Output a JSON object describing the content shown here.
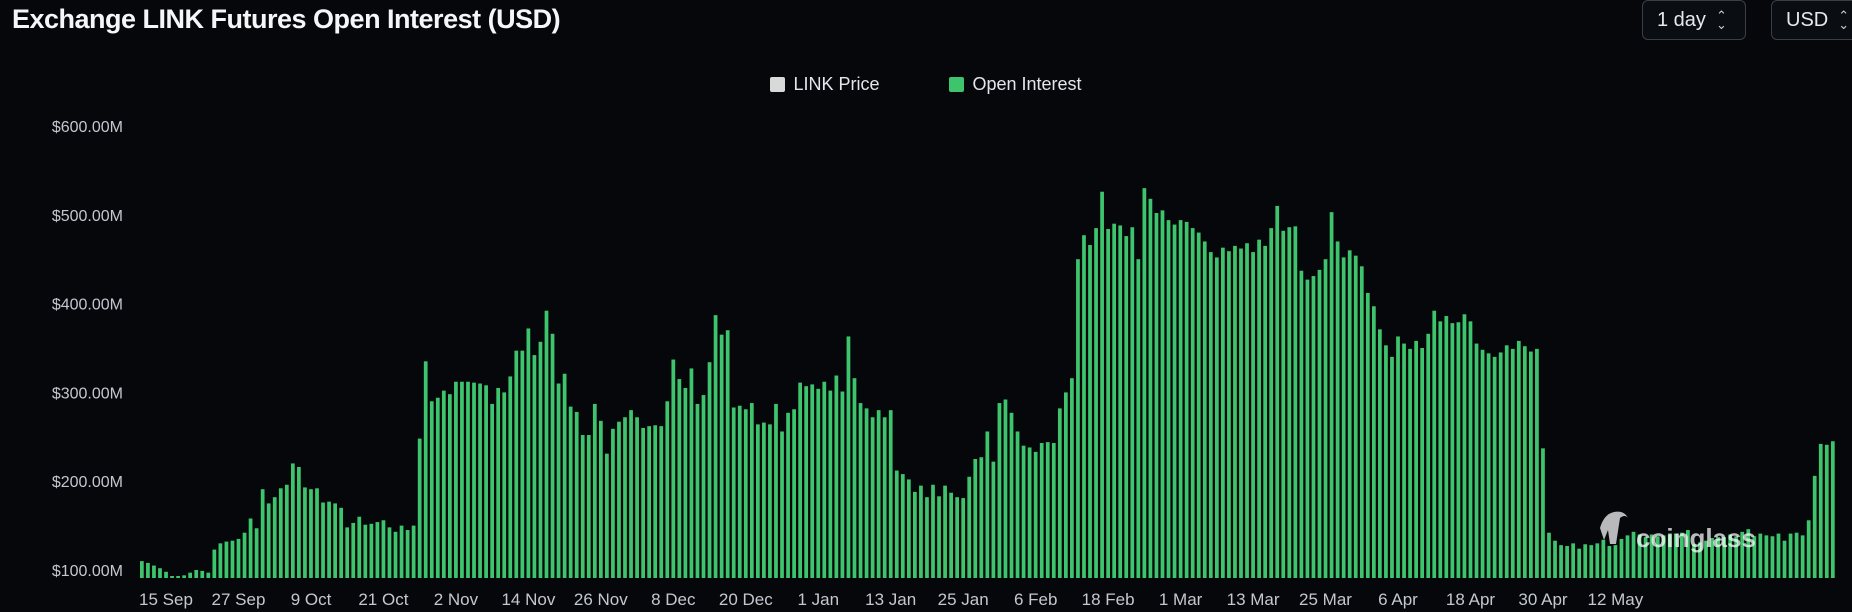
{
  "header": {
    "title": "Exchange LINK Futures Open Interest (USD)"
  },
  "controls": {
    "interval": "1 day",
    "currency": "USD"
  },
  "watermark": "coinglass",
  "colors": {
    "open_interest": "#3ec46d",
    "link_price": "#d9d9d9",
    "background": "#05070b"
  },
  "chart_data": {
    "type": "bar",
    "title": "Exchange LINK Futures Open Interest (USD)",
    "legend": [
      "LINK Price",
      "Open Interest"
    ],
    "legend_position": "top-center",
    "series": [
      {
        "name": "Open Interest",
        "color": "#3ec46d",
        "values": [
          110,
          108,
          105,
          102,
          98,
          93,
          92,
          94,
          97,
          100,
          99,
          97,
          123,
          130,
          132,
          133,
          135,
          142,
          158,
          147,
          191,
          175,
          182,
          192,
          196,
          220,
          216,
          193,
          191,
          192,
          176,
          177,
          175,
          170,
          148,
          153,
          160,
          151,
          152,
          154,
          156,
          148,
          143,
          150,
          145,
          150,
          248,
          335,
          290,
          294,
          302,
          298,
          312,
          312,
          312,
          311,
          310,
          308,
          287,
          305,
          300,
          318,
          347,
          347,
          372,
          342,
          357,
          392,
          366,
          310,
          321,
          284,
          278,
          252,
          252,
          287,
          268,
          231,
          259,
          267,
          272,
          280,
          272,
          260,
          262,
          263,
          262,
          290,
          337,
          315,
          305,
          327,
          287,
          297,
          334,
          387,
          365,
          370,
          283,
          285,
          281,
          288,
          264,
          266,
          264,
          287,
          256,
          277,
          281,
          311,
          307,
          309,
          304,
          312,
          302,
          319,
          301,
          363,
          316,
          288,
          282,
          272,
          280,
          272,
          280,
          212,
          208,
          202,
          188,
          195,
          182,
          196,
          183,
          195,
          187,
          182,
          181,
          205,
          225,
          227,
          256,
          222,
          288,
          292,
          277,
          256,
          240,
          238,
          233,
          243,
          244,
          243,
          282,
          300,
          316,
          450,
          477,
          466,
          485,
          526,
          484,
          490,
          488,
          476,
          486,
          450,
          530,
          518,
          502,
          505,
          494,
          489,
          494,
          492,
          485,
          480,
          470,
          458,
          452,
          463,
          459,
          465,
          462,
          468,
          458,
          472,
          465,
          485,
          510,
          482,
          486,
          487,
          437,
          427,
          431,
          438,
          450,
          503,
          470,
          452,
          460,
          454,
          442,
          412,
          397,
          371,
          353,
          340,
          363,
          355,
          349,
          358,
          350,
          366,
          392,
          380,
          386,
          378,
          379,
          388,
          380,
          355,
          348,
          344,
          340,
          345,
          353,
          349,
          358,
          352,
          346,
          349,
          237,
          142,
          133,
          128,
          127,
          130,
          124,
          129,
          128,
          130,
          134,
          127,
          128,
          135,
          139,
          143,
          140,
          137,
          140,
          138,
          139,
          140,
          141,
          142,
          145,
          129,
          131,
          133,
          136,
          137,
          137,
          140,
          138,
          143,
          146,
          138,
          141,
          139,
          138,
          141,
          133,
          141,
          142,
          139,
          156,
          206,
          242,
          241,
          245
        ]
      },
      {
        "name": "LINK Price",
        "color": "#d9d9d9",
        "values": []
      }
    ],
    "x_tick_labels": [
      "15 Sep",
      "27 Sep",
      "9 Oct",
      "21 Oct",
      "2 Nov",
      "14 Nov",
      "26 Nov",
      "8 Dec",
      "20 Dec",
      "1 Jan",
      "13 Jan",
      "25 Jan",
      "6 Feb",
      "18 Feb",
      "1 Mar",
      "13 Mar",
      "25 Mar",
      "6 Apr",
      "18 Apr",
      "30 Apr",
      "12 May"
    ],
    "y_tick_labels": [
      "$100.00M",
      "$200.00M",
      "$300.00M",
      "$400.00M",
      "$500.00M",
      "$600.00M"
    ],
    "y_tick_values": [
      100,
      200,
      300,
      400,
      500,
      600
    ],
    "y_unit": "M USD",
    "ylim": [
      100,
      600
    ],
    "grid": false
  }
}
